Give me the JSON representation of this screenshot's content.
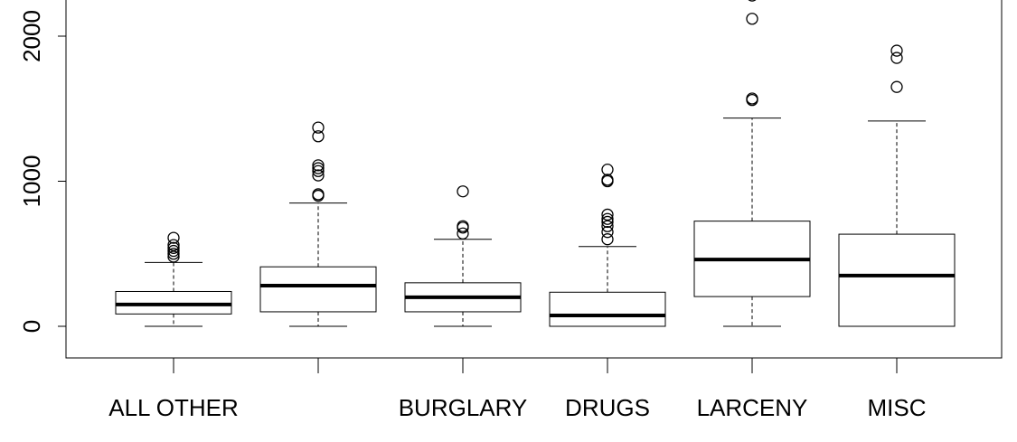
{
  "chart_data": {
    "type": "boxplot",
    "title": "",
    "xlabel": "",
    "ylabel": "",
    "categories": [
      "ALL OTHER",
      "",
      "BURGLARY",
      "DRUGS",
      "LARCENY",
      "MISC"
    ],
    "yticks": [
      0,
      1000,
      2000
    ],
    "boxes": [
      {
        "category": "ALL OTHER",
        "min": 0,
        "q1": 85,
        "median": 150,
        "q3": 240,
        "max": 440,
        "outliers": [
          480,
          500,
          520,
          540,
          560,
          610
        ]
      },
      {
        "category": "",
        "min": 0,
        "q1": 100,
        "median": 280,
        "q3": 410,
        "max": 850,
        "outliers": [
          900,
          910,
          1040,
          1070,
          1090,
          1110,
          1310,
          1370
        ]
      },
      {
        "category": "BURGLARY",
        "min": 0,
        "q1": 100,
        "median": 200,
        "q3": 300,
        "max": 600,
        "outliers": [
          640,
          680,
          690,
          930
        ]
      },
      {
        "category": "DRUGS",
        "min": 0,
        "q1": 0,
        "median": 75,
        "q3": 235,
        "max": 550,
        "outliers": [
          600,
          650,
          690,
          720,
          740,
          770,
          1000,
          1010,
          1080
        ]
      },
      {
        "category": "LARCENY",
        "min": 0,
        "q1": 205,
        "median": 460,
        "q3": 725,
        "max": 1435,
        "outliers": [
          1560,
          1570,
          2120,
          2280
        ]
      },
      {
        "category": "MISC",
        "min": 0,
        "q1": 0,
        "median": 350,
        "q3": 635,
        "max": 1415,
        "outliers": [
          1650,
          1850,
          1900
        ]
      }
    ]
  }
}
